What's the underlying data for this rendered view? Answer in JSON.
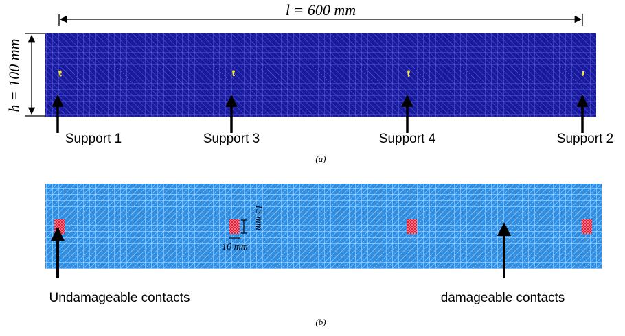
{
  "panel_a": {
    "length_label": "l = 600 mm",
    "height_label": "h = 100 mm",
    "supports": [
      "Support 1",
      "Support 3",
      "Support 4",
      "Support 2"
    ],
    "caption": "(a)",
    "colors": {
      "beam": "#1a1aa0",
      "mesh": "#6a78e0",
      "support_particles": "#f2e23a"
    }
  },
  "panel_b": {
    "dim_vertical": "15 mm",
    "dim_horizontal": "10 mm",
    "label_left": "Undamageable contacts",
    "label_right": "damageable contacts",
    "caption": "(b)",
    "colors": {
      "beam": "#2e8fe6",
      "mesh": "#bfe0ff",
      "undamageable": "#e8102a"
    }
  }
}
